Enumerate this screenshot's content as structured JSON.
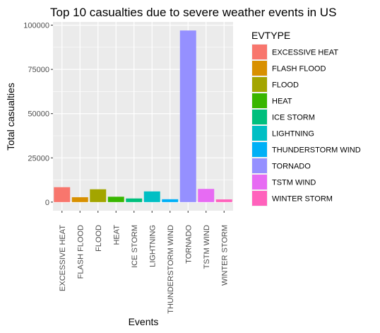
{
  "chart_data": {
    "type": "bar",
    "title": "Top 10 casualties due to severe weather events in US",
    "xlabel": "Events",
    "ylabel": "Total casualties",
    "categories": [
      "EXCESSIVE HEAT",
      "FLASH FLOOD",
      "FLOOD",
      "HEAT",
      "ICE STORM",
      "LIGHTNING",
      "THUNDERSTORM WIND",
      "TORNADO",
      "TSTM WIND",
      "WINTER STORM"
    ],
    "values": [
      8428,
      2755,
      7259,
      3037,
      2064,
      6046,
      1621,
      96979,
      7461,
      1527
    ],
    "colors": [
      "#F8766D",
      "#D89000",
      "#A3A500",
      "#39B600",
      "#00BF7D",
      "#00BFC4",
      "#00B0F6",
      "#9590FF",
      "#E76BF3",
      "#FF62BC"
    ],
    "ylim": [
      -4849,
      101828
    ],
    "yticks": [
      0,
      25000,
      50000,
      75000,
      100000
    ],
    "ytick_labels": [
      "0",
      "25000",
      "50000",
      "75000",
      "100000"
    ],
    "legend_title": "EVTYPE",
    "legend_position": "right",
    "panel_background": "#EBEBEB",
    "grid_color": "#FFFFFF",
    "grid": true
  }
}
